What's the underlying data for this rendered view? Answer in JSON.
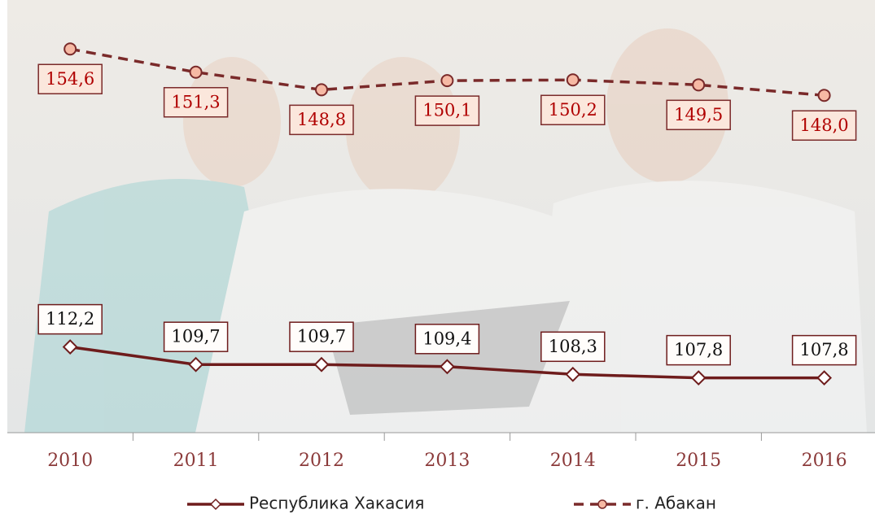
{
  "chart_data": {
    "type": "line",
    "categories": [
      "2010",
      "2011",
      "2012",
      "2013",
      "2014",
      "2015",
      "2016"
    ],
    "series": [
      {
        "name": "Республика Хакасия",
        "color": "#6e1c1c",
        "line_style": "solid",
        "marker": "diamond",
        "values": [
          112.2,
          109.7,
          109.7,
          109.4,
          108.3,
          107.8,
          107.8
        ],
        "value_labels": [
          "112,2",
          "109,7",
          "109,7",
          "109,4",
          "108,3",
          "107,8",
          "107,8"
        ]
      },
      {
        "name": "г. Абакан",
        "color": "#7a2a2a",
        "line_style": "dashed",
        "marker": "circle",
        "values": [
          154.6,
          151.3,
          148.8,
          150.1,
          150.2,
          149.5,
          148.0
        ],
        "value_labels": [
          "154,6",
          "151,3",
          "148,8",
          "150,1",
          "150,2",
          "149,5",
          "148,0"
        ]
      }
    ],
    "ylim": [
      100,
      160
    ],
    "grid": false,
    "legend": "bottom"
  }
}
